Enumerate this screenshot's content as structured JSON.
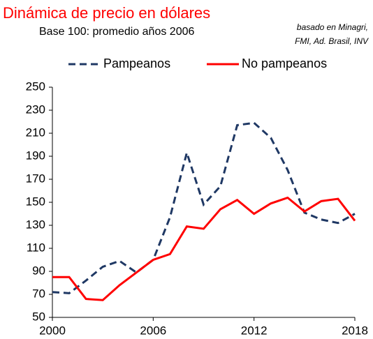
{
  "chart_data": {
    "type": "line",
    "title": "Dinámica  de precio en dólares",
    "subtitle": "Base 100: promedio años 2006",
    "annotations": [
      "basado en Minagri,",
      "FMI, Ad. Brasil, INV"
    ],
    "x": [
      2000,
      2001,
      2002,
      2003,
      2004,
      2005,
      2006,
      2007,
      2008,
      2009,
      2010,
      2011,
      2012,
      2013,
      2014,
      2015,
      2016,
      2017,
      2018
    ],
    "series": [
      {
        "name": "Pampeanos",
        "color": "#1f3864",
        "dash": true,
        "values": [
          72,
          71,
          82,
          94,
          99,
          89,
          100,
          137,
          193,
          148,
          164,
          217,
          219,
          206,
          178,
          141,
          135,
          132,
          140
        ]
      },
      {
        "name": "No pampeanos",
        "color": "#ff0000",
        "dash": false,
        "values": [
          85,
          85,
          66,
          65,
          78,
          89,
          100,
          105,
          129,
          127,
          144,
          152,
          140,
          149,
          154,
          142,
          151,
          153,
          134
        ]
      }
    ],
    "xlim": [
      2000,
      2018
    ],
    "xticks": [
      2000,
      2006,
      2012,
      2018
    ],
    "ylim": [
      50,
      250
    ],
    "yticks": [
      50,
      70,
      90,
      110,
      130,
      150,
      170,
      190,
      210,
      230,
      250
    ],
    "grid": false,
    "legend": "top"
  }
}
